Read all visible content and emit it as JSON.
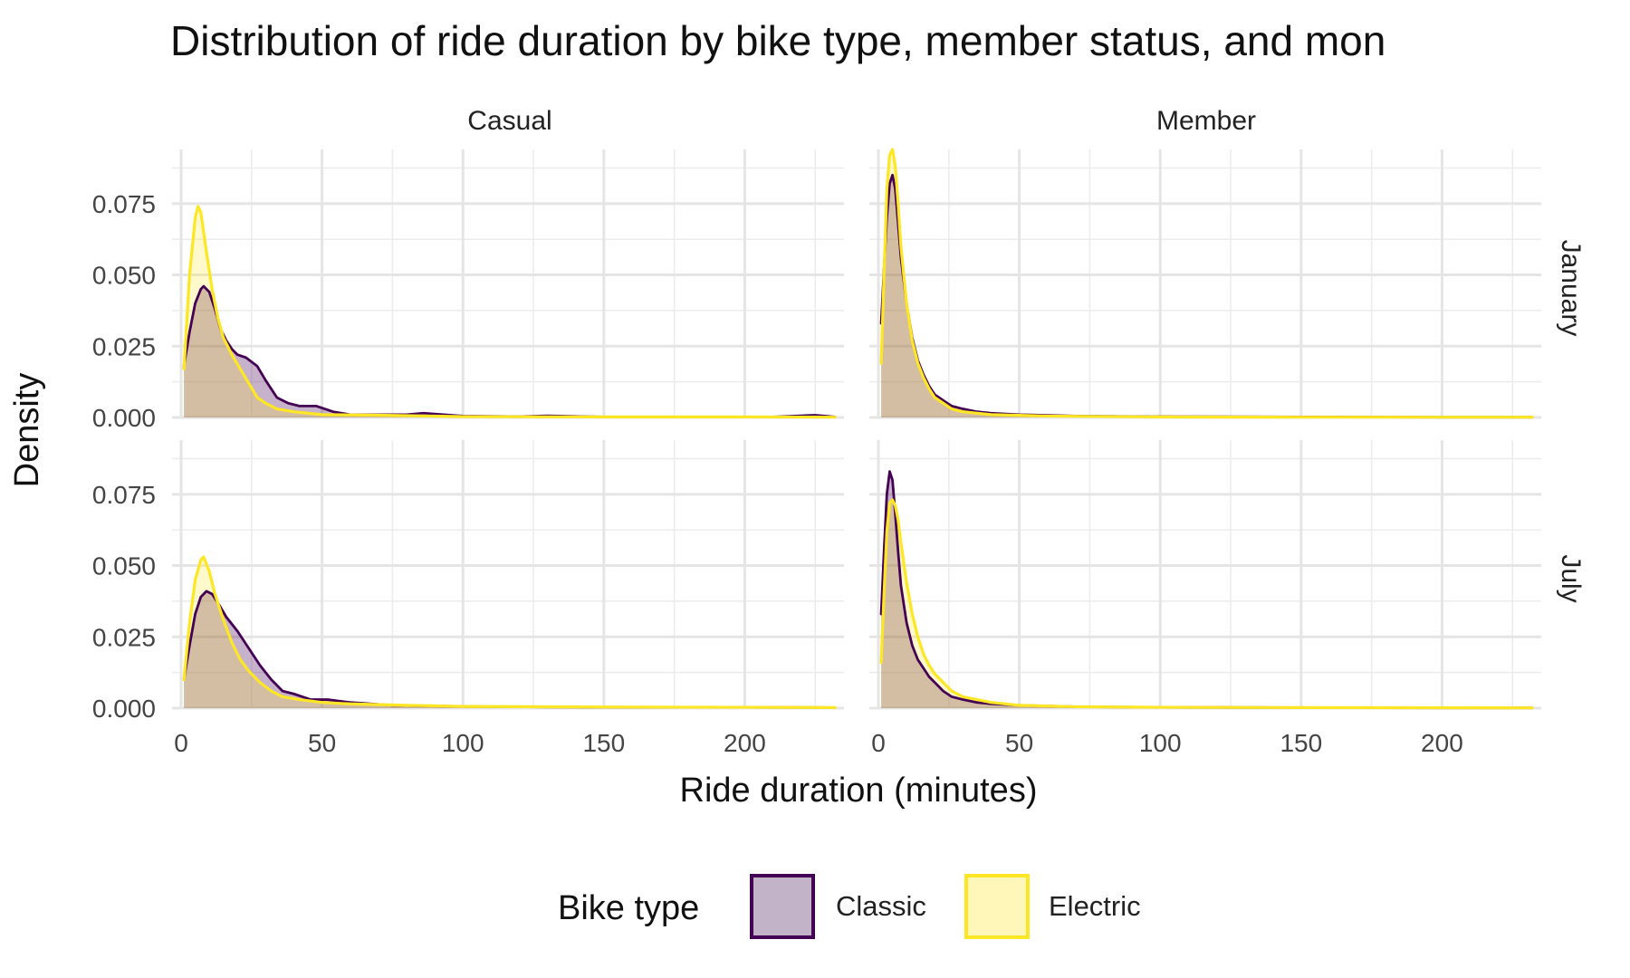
{
  "chart_data": {
    "type": "area",
    "chart_kind": "faceted density",
    "title": "Distribution of ride duration by  bike type, member status, and mon",
    "xlabel": "Ride duration (minutes)",
    "ylabel": "Density",
    "xlim": [
      0,
      232
    ],
    "ylim": [
      0,
      0.094
    ],
    "x_ticks": [
      0,
      50,
      100,
      150,
      200
    ],
    "x_tick_labels": [
      "0",
      "50",
      "100",
      "150",
      "200"
    ],
    "y_ticks": [
      0,
      0.025,
      0.05,
      0.075
    ],
    "y_tick_labels": [
      "0.000",
      "0.025",
      "0.050",
      "0.075"
    ],
    "grid": true,
    "legend_position": "bottom",
    "legend": {
      "title": "Bike type",
      "items": [
        {
          "label": "Classic",
          "color": "#440154",
          "fill": "#c2b3c8"
        },
        {
          "label": "Electric",
          "color": "#fde725",
          "fill": "#fff6b9"
        }
      ]
    },
    "columns": [
      "Casual",
      "Member"
    ],
    "rows": [
      "January",
      "July"
    ],
    "panels": [
      {
        "row": "January",
        "column": "Casual",
        "series": [
          {
            "name": "Classic",
            "points": [
              [
                1,
                0.018
              ],
              [
                3,
                0.03
              ],
              [
                5,
                0.04
              ],
              [
                7,
                0.045
              ],
              [
                8,
                0.046
              ],
              [
                10,
                0.044
              ],
              [
                12,
                0.038
              ],
              [
                14,
                0.031
              ],
              [
                16,
                0.027
              ],
              [
                18,
                0.024
              ],
              [
                20,
                0.022
              ],
              [
                23,
                0.021
              ],
              [
                27,
                0.018
              ],
              [
                30,
                0.013
              ],
              [
                34,
                0.007
              ],
              [
                38,
                0.005
              ],
              [
                42,
                0.004
              ],
              [
                48,
                0.004
              ],
              [
                54,
                0.002
              ],
              [
                60,
                0.001
              ],
              [
                80,
                0.001
              ],
              [
                86,
                0.0015
              ],
              [
                100,
                0.0005
              ],
              [
                120,
                0.0003
              ],
              [
                130,
                0.0006
              ],
              [
                150,
                0.0002
              ],
              [
                180,
                0.0002
              ],
              [
                210,
                0.0002
              ],
              [
                225,
                0.0008
              ],
              [
                232,
                0.0002
              ]
            ]
          },
          {
            "name": "Electric",
            "points": [
              [
                1,
                0.017
              ],
              [
                3,
                0.05
              ],
              [
                5,
                0.07
              ],
              [
                6,
                0.074
              ],
              [
                7,
                0.072
              ],
              [
                9,
                0.058
              ],
              [
                11,
                0.045
              ],
              [
                13,
                0.035
              ],
              [
                15,
                0.028
              ],
              [
                18,
                0.022
              ],
              [
                21,
                0.017
              ],
              [
                24,
                0.012
              ],
              [
                27,
                0.007
              ],
              [
                30,
                0.005
              ],
              [
                34,
                0.003
              ],
              [
                40,
                0.002
              ],
              [
                50,
                0.001
              ],
              [
                70,
                0.0008
              ],
              [
                100,
                0.0003
              ],
              [
                150,
                0.0002
              ],
              [
                200,
                0.0002
              ],
              [
                232,
                0.0001
              ]
            ]
          }
        ]
      },
      {
        "row": "January",
        "column": "Member",
        "series": [
          {
            "name": "Classic",
            "points": [
              [
                1,
                0.033
              ],
              [
                2,
                0.052
              ],
              [
                3,
                0.07
              ],
              [
                4,
                0.082
              ],
              [
                5,
                0.085
              ],
              [
                6,
                0.08
              ],
              [
                7,
                0.068
              ],
              [
                8,
                0.056
              ],
              [
                10,
                0.04
              ],
              [
                12,
                0.028
              ],
              [
                14,
                0.02
              ],
              [
                16,
                0.015
              ],
              [
                18,
                0.011
              ],
              [
                20,
                0.008
              ],
              [
                23,
                0.006
              ],
              [
                26,
                0.004
              ],
              [
                30,
                0.003
              ],
              [
                35,
                0.002
              ],
              [
                40,
                0.0015
              ],
              [
                50,
                0.001
              ],
              [
                70,
                0.0005
              ],
              [
                100,
                0.0003
              ],
              [
                150,
                0.0002
              ],
              [
                200,
                0.0001
              ],
              [
                232,
                0.0001
              ]
            ]
          },
          {
            "name": "Electric",
            "points": [
              [
                1,
                0.019
              ],
              [
                2,
                0.05
              ],
              [
                3,
                0.08
              ],
              [
                4,
                0.092
              ],
              [
                5,
                0.094
              ],
              [
                6,
                0.088
              ],
              [
                7,
                0.075
              ],
              [
                8,
                0.06
              ],
              [
                10,
                0.04
              ],
              [
                12,
                0.027
              ],
              [
                14,
                0.019
              ],
              [
                16,
                0.014
              ],
              [
                18,
                0.01
              ],
              [
                20,
                0.007
              ],
              [
                23,
                0.005
              ],
              [
                26,
                0.003
              ],
              [
                30,
                0.002
              ],
              [
                40,
                0.001
              ],
              [
                60,
                0.0005
              ],
              [
                100,
                0.0002
              ],
              [
                150,
                0.0001
              ],
              [
                232,
                0.0001
              ]
            ]
          }
        ]
      },
      {
        "row": "July",
        "column": "Casual",
        "series": [
          {
            "name": "Classic",
            "points": [
              [
                1,
                0.01
              ],
              [
                3,
                0.022
              ],
              [
                5,
                0.033
              ],
              [
                7,
                0.039
              ],
              [
                9,
                0.041
              ],
              [
                11,
                0.04
              ],
              [
                13,
                0.037
              ],
              [
                16,
                0.032
              ],
              [
                20,
                0.027
              ],
              [
                24,
                0.021
              ],
              [
                28,
                0.015
              ],
              [
                32,
                0.01
              ],
              [
                36,
                0.006
              ],
              [
                40,
                0.005
              ],
              [
                46,
                0.003
              ],
              [
                52,
                0.003
              ],
              [
                60,
                0.002
              ],
              [
                75,
                0.001
              ],
              [
                100,
                0.0006
              ],
              [
                130,
                0.0004
              ],
              [
                160,
                0.0003
              ],
              [
                200,
                0.0003
              ],
              [
                232,
                0.0002
              ]
            ]
          },
          {
            "name": "Electric",
            "points": [
              [
                1,
                0.01
              ],
              [
                3,
                0.03
              ],
              [
                5,
                0.045
              ],
              [
                7,
                0.052
              ],
              [
                8,
                0.053
              ],
              [
                10,
                0.048
              ],
              [
                12,
                0.04
              ],
              [
                15,
                0.031
              ],
              [
                18,
                0.023
              ],
              [
                21,
                0.017
              ],
              [
                24,
                0.013
              ],
              [
                28,
                0.009
              ],
              [
                32,
                0.006
              ],
              [
                36,
                0.004
              ],
              [
                42,
                0.003
              ],
              [
                50,
                0.002
              ],
              [
                60,
                0.0015
              ],
              [
                80,
                0.001
              ],
              [
                100,
                0.0006
              ],
              [
                150,
                0.0004
              ],
              [
                200,
                0.0003
              ],
              [
                232,
                0.0002
              ]
            ]
          }
        ]
      },
      {
        "row": "July",
        "column": "Member",
        "series": [
          {
            "name": "Classic",
            "points": [
              [
                1,
                0.033
              ],
              [
                2,
                0.055
              ],
              [
                3,
                0.075
              ],
              [
                4,
                0.083
              ],
              [
                5,
                0.08
              ],
              [
                6,
                0.068
              ],
              [
                7,
                0.055
              ],
              [
                8,
                0.043
              ],
              [
                10,
                0.03
              ],
              [
                12,
                0.022
              ],
              [
                14,
                0.017
              ],
              [
                16,
                0.014
              ],
              [
                18,
                0.011
              ],
              [
                20,
                0.009
              ],
              [
                23,
                0.006
              ],
              [
                26,
                0.004
              ],
              [
                30,
                0.003
              ],
              [
                35,
                0.002
              ],
              [
                40,
                0.0015
              ],
              [
                50,
                0.001
              ],
              [
                70,
                0.0005
              ],
              [
                100,
                0.0003
              ],
              [
                150,
                0.0002
              ],
              [
                200,
                0.0001
              ],
              [
                232,
                0.0001
              ]
            ]
          },
          {
            "name": "Electric",
            "points": [
              [
                1,
                0.016
              ],
              [
                2,
                0.04
              ],
              [
                3,
                0.062
              ],
              [
                4,
                0.072
              ],
              [
                5,
                0.073
              ],
              [
                6,
                0.071
              ],
              [
                7,
                0.066
              ],
              [
                8,
                0.058
              ],
              [
                10,
                0.044
              ],
              [
                12,
                0.033
              ],
              [
                14,
                0.025
              ],
              [
                16,
                0.019
              ],
              [
                18,
                0.015
              ],
              [
                20,
                0.012
              ],
              [
                23,
                0.009
              ],
              [
                26,
                0.006
              ],
              [
                30,
                0.004
              ],
              [
                35,
                0.003
              ],
              [
                40,
                0.002
              ],
              [
                50,
                0.001
              ],
              [
                70,
                0.0005
              ],
              [
                100,
                0.0003
              ],
              [
                150,
                0.0002
              ],
              [
                232,
                0.0001
              ]
            ]
          }
        ]
      }
    ]
  }
}
